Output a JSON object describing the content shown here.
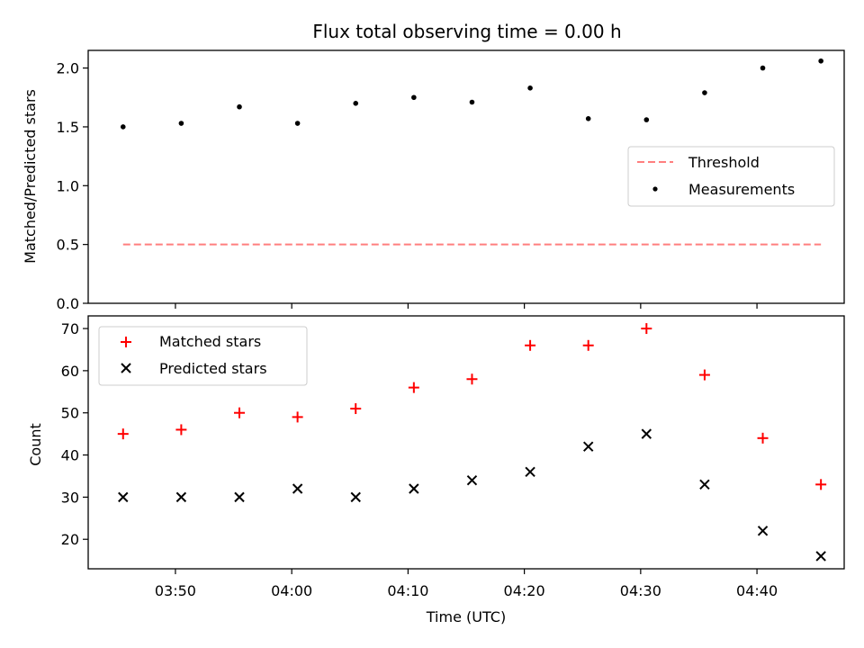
{
  "chart_data": [
    {
      "type": "scatter",
      "title": "Flux total observing time = 0.00 h",
      "ylabel": "Matched/Predicted stars",
      "xlabel": "",
      "x": [
        "03:45:30",
        "03:50:30",
        "03:55:30",
        "04:00:30",
        "04:05:30",
        "04:10:30",
        "04:15:30",
        "04:20:30",
        "04:25:30",
        "04:30:30",
        "04:35:30",
        "04:40:30",
        "04:45:30"
      ],
      "xlim": [
        "03:42:30",
        "04:47:30"
      ],
      "ylim": [
        0,
        2.15
      ],
      "yticks": [
        "0.0",
        "0.5",
        "1.0",
        "1.5",
        "2.0"
      ],
      "yticks_values": [
        0,
        0.5,
        1.0,
        1.5,
        2.0
      ],
      "series": [
        {
          "name": "Measurements",
          "marker": "dot",
          "color": "#000000",
          "values": [
            1.5,
            1.53,
            1.67,
            1.53,
            1.7,
            1.75,
            1.71,
            1.83,
            1.57,
            1.56,
            1.79,
            2.0,
            2.06
          ]
        }
      ],
      "threshold": {
        "name": "Threshold",
        "value": 0.5,
        "color": "#ff7f7f",
        "style": "dashed"
      },
      "legend": [
        "Threshold",
        "Measurements"
      ],
      "legend_placement": "center-right",
      "grid": false
    },
    {
      "type": "scatter",
      "title": "",
      "xlabel": "Time (UTC)",
      "ylabel": "Count",
      "x": [
        "03:45:30",
        "03:50:30",
        "03:55:30",
        "04:00:30",
        "04:05:30",
        "04:10:30",
        "04:15:30",
        "04:20:30",
        "04:25:30",
        "04:30:30",
        "04:35:30",
        "04:40:30",
        "04:45:30"
      ],
      "xlim": [
        "03:42:30",
        "04:47:30"
      ],
      "xticks": [
        "03:50",
        "04:00",
        "04:10",
        "04:20",
        "04:30",
        "04:40"
      ],
      "ylim": [
        13,
        73
      ],
      "yticks": [
        "20",
        "30",
        "40",
        "50",
        "60",
        "70"
      ],
      "yticks_values": [
        20,
        30,
        40,
        50,
        60,
        70
      ],
      "series": [
        {
          "name": "Matched stars",
          "marker": "plus",
          "color": "#ff0000",
          "values": [
            45,
            46,
            50,
            49,
            51,
            56,
            58,
            66,
            66,
            70,
            59,
            44,
            33
          ]
        },
        {
          "name": "Predicted stars",
          "marker": "x",
          "color": "#000000",
          "values": [
            30,
            30,
            30,
            32,
            30,
            32,
            34,
            36,
            42,
            45,
            33,
            22,
            16
          ]
        }
      ],
      "legend": [
        "Matched stars",
        "Predicted stars"
      ],
      "legend_placement": "upper-left",
      "grid": false
    }
  ]
}
